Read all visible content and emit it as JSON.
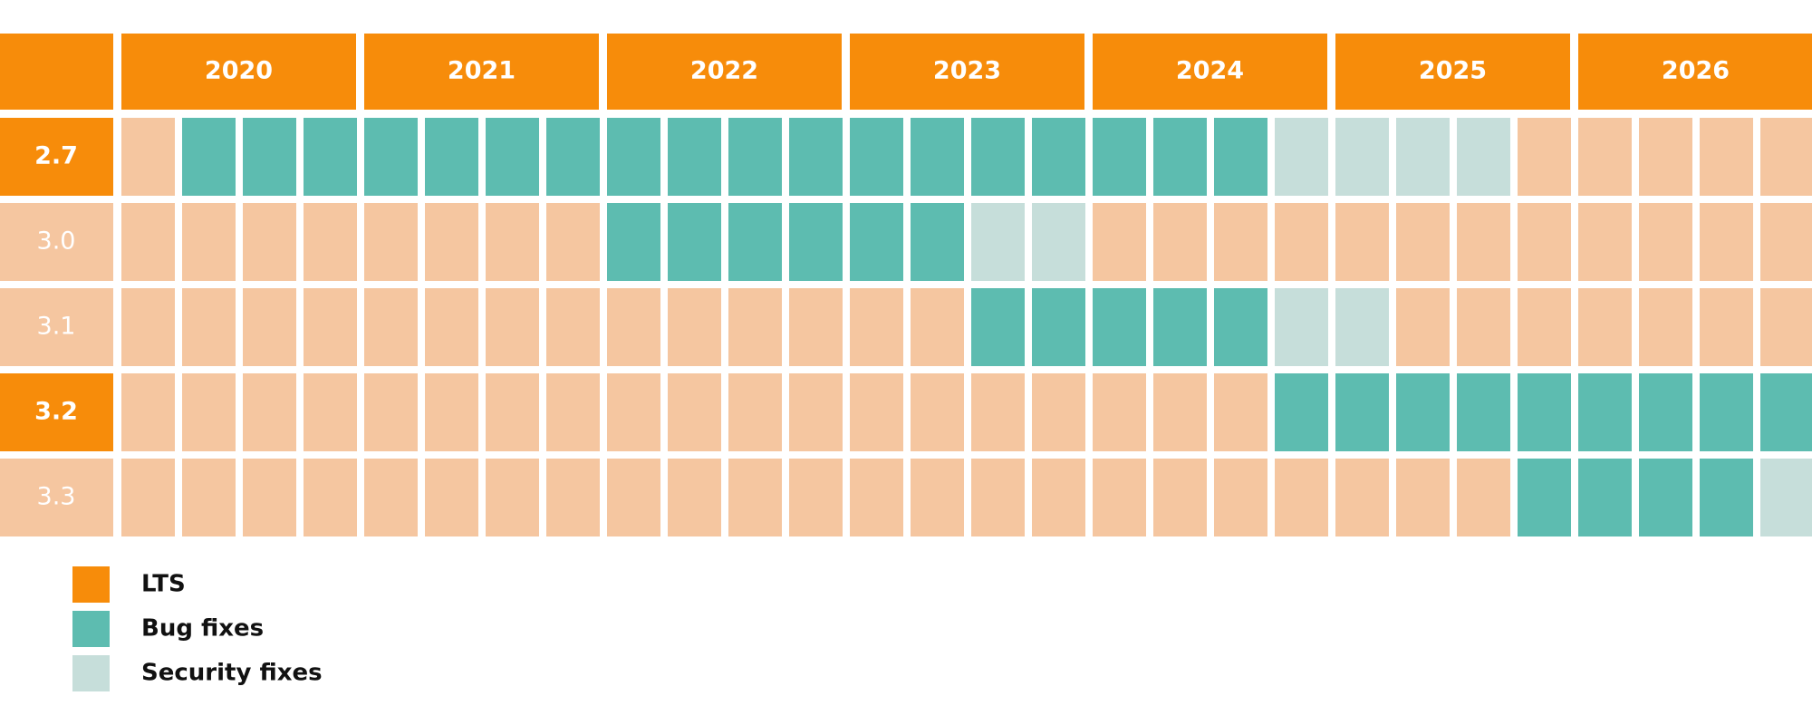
{
  "header": {
    "years": [
      "2020",
      "2021",
      "2022",
      "2023",
      "2024",
      "2025",
      "2026"
    ]
  },
  "rows": [
    {
      "version": "2.7",
      "lts": true,
      "cells": [
        null,
        1,
        1,
        1,
        1,
        1,
        1,
        1,
        1,
        1,
        1,
        1,
        1,
        1,
        1,
        1,
        1,
        1,
        1,
        2,
        2,
        2,
        2,
        null,
        null,
        null,
        null,
        null
      ]
    },
    {
      "version": "3.0",
      "lts": false,
      "cells": [
        null,
        null,
        null,
        null,
        null,
        null,
        null,
        null,
        1,
        1,
        1,
        1,
        1,
        1,
        2,
        2,
        null,
        null,
        null,
        null,
        null,
        null,
        null,
        null,
        null,
        null,
        null,
        null
      ]
    },
    {
      "version": "3.1",
      "lts": false,
      "cells": [
        null,
        null,
        null,
        null,
        null,
        null,
        null,
        null,
        null,
        null,
        null,
        null,
        null,
        null,
        1,
        1,
        1,
        1,
        1,
        2,
        2,
        null,
        null,
        null,
        null,
        null,
        null,
        null
      ]
    },
    {
      "version": "3.2",
      "lts": true,
      "cells": [
        null,
        null,
        null,
        null,
        null,
        null,
        null,
        null,
        null,
        null,
        null,
        null,
        null,
        null,
        null,
        null,
        null,
        null,
        null,
        1,
        1,
        1,
        1,
        1,
        1,
        1,
        1,
        1
      ]
    },
    {
      "version": "3.3",
      "lts": false,
      "cells": [
        null,
        null,
        null,
        null,
        null,
        null,
        null,
        null,
        null,
        null,
        null,
        null,
        null,
        null,
        null,
        null,
        null,
        null,
        null,
        null,
        null,
        null,
        null,
        1,
        1,
        1,
        1,
        2
      ]
    }
  ],
  "legend": [
    {
      "label": "LTS",
      "color": "#F78C0A"
    },
    {
      "label": "Bug fixes",
      "color": "#5DBCB0"
    },
    {
      "label": "Security fixes",
      "color": "#C6DEDA"
    }
  ],
  "none_color": "#F5C6A0"
}
